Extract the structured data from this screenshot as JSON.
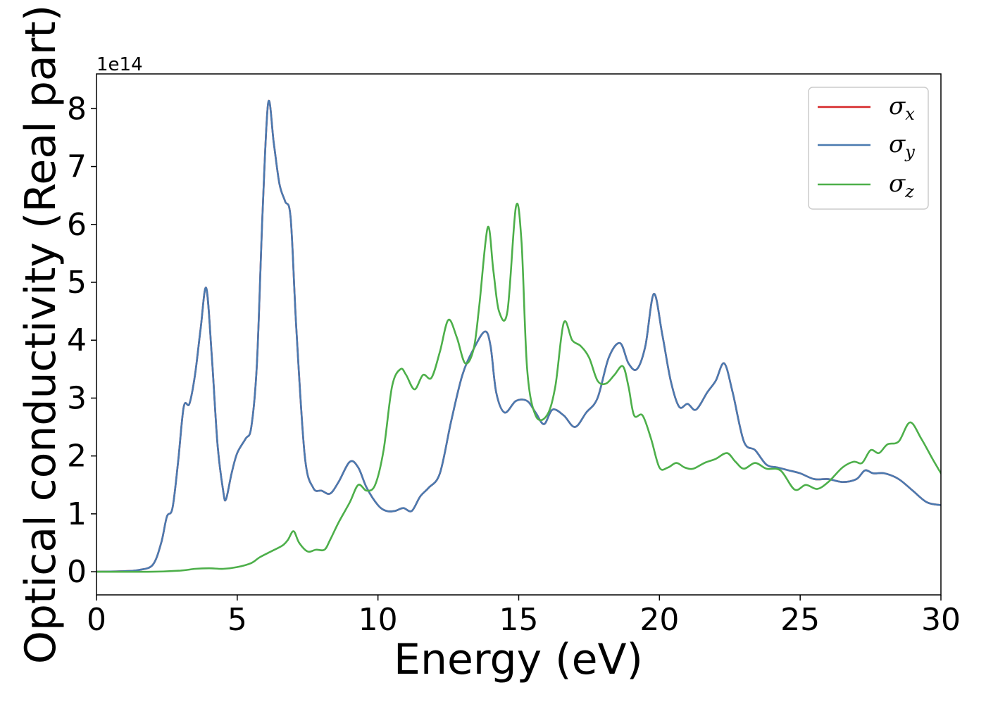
{
  "chart_data": {
    "type": "line",
    "title": "",
    "xlabel": "Energy (eV)",
    "ylabel": "Optical conductivity (Real part)",
    "y_offset_label": "1e14",
    "y_scale": 100000000000000.0,
    "xlim": [
      0,
      30
    ],
    "ylim": [
      -0.4,
      8.6
    ],
    "x_ticks": [
      0,
      5,
      10,
      15,
      20,
      25,
      30
    ],
    "x_tick_labels": [
      "0",
      "5",
      "10",
      "15",
      "20",
      "25",
      "30"
    ],
    "y_ticks": [
      0,
      1,
      2,
      3,
      4,
      5,
      6,
      7,
      8
    ],
    "y_tick_labels": [
      "0",
      "1",
      "2",
      "3",
      "4",
      "5",
      "6",
      "7",
      "8"
    ],
    "grid": false,
    "legend_position": "top-right",
    "series": [
      {
        "name": "σx",
        "legend_base": "σ",
        "legend_sub": "x",
        "color": "#d62728",
        "note_hidden_by": "σy",
        "points": [
          [
            0,
            0
          ],
          [
            1,
            0.01
          ],
          [
            1.5,
            0.03
          ],
          [
            2,
            0.12
          ],
          [
            2.3,
            0.5
          ],
          [
            2.5,
            0.95
          ],
          [
            2.7,
            1.1
          ],
          [
            2.9,
            1.9
          ],
          [
            3.1,
            2.85
          ],
          [
            3.3,
            2.9
          ],
          [
            3.5,
            3.4
          ],
          [
            3.7,
            4.2
          ],
          [
            3.9,
            4.9
          ],
          [
            4.1,
            3.7
          ],
          [
            4.3,
            2.2
          ],
          [
            4.5,
            1.4
          ],
          [
            4.6,
            1.25
          ],
          [
            4.8,
            1.7
          ],
          [
            5.0,
            2.05
          ],
          [
            5.3,
            2.3
          ],
          [
            5.5,
            2.5
          ],
          [
            5.7,
            3.6
          ],
          [
            5.9,
            6.2
          ],
          [
            6.1,
            8.1
          ],
          [
            6.3,
            7.4
          ],
          [
            6.5,
            6.7
          ],
          [
            6.7,
            6.4
          ],
          [
            6.9,
            6.1
          ],
          [
            7.1,
            4.2
          ],
          [
            7.4,
            2.0
          ],
          [
            7.7,
            1.45
          ],
          [
            8.0,
            1.4
          ],
          [
            8.3,
            1.35
          ],
          [
            8.6,
            1.55
          ],
          [
            9.0,
            1.9
          ],
          [
            9.3,
            1.8
          ],
          [
            9.6,
            1.45
          ],
          [
            10.0,
            1.15
          ],
          [
            10.3,
            1.05
          ],
          [
            10.6,
            1.05
          ],
          [
            10.9,
            1.1
          ],
          [
            11.2,
            1.05
          ],
          [
            11.5,
            1.3
          ],
          [
            11.8,
            1.45
          ],
          [
            12.2,
            1.7
          ],
          [
            12.6,
            2.6
          ],
          [
            13.0,
            3.4
          ],
          [
            13.4,
            3.85
          ],
          [
            13.8,
            4.15
          ],
          [
            14.0,
            3.9
          ],
          [
            14.2,
            3.1
          ],
          [
            14.5,
            2.75
          ],
          [
            14.9,
            2.95
          ],
          [
            15.3,
            2.95
          ],
          [
            15.6,
            2.75
          ],
          [
            15.9,
            2.55
          ],
          [
            16.2,
            2.8
          ],
          [
            16.6,
            2.7
          ],
          [
            17.0,
            2.5
          ],
          [
            17.4,
            2.75
          ],
          [
            17.8,
            3.0
          ],
          [
            18.2,
            3.7
          ],
          [
            18.6,
            3.95
          ],
          [
            18.9,
            3.6
          ],
          [
            19.2,
            3.5
          ],
          [
            19.5,
            3.9
          ],
          [
            19.8,
            4.8
          ],
          [
            20.1,
            4.1
          ],
          [
            20.4,
            3.3
          ],
          [
            20.7,
            2.85
          ],
          [
            21.0,
            2.9
          ],
          [
            21.3,
            2.8
          ],
          [
            21.7,
            3.1
          ],
          [
            22.0,
            3.3
          ],
          [
            22.3,
            3.6
          ],
          [
            22.6,
            3.1
          ],
          [
            23.0,
            2.25
          ],
          [
            23.4,
            2.1
          ],
          [
            23.8,
            1.85
          ],
          [
            24.2,
            1.8
          ],
          [
            24.6,
            1.75
          ],
          [
            25.0,
            1.7
          ],
          [
            25.5,
            1.6
          ],
          [
            26.0,
            1.6
          ],
          [
            26.5,
            1.55
          ],
          [
            27.0,
            1.6
          ],
          [
            27.3,
            1.75
          ],
          [
            27.6,
            1.7
          ],
          [
            28.0,
            1.7
          ],
          [
            28.5,
            1.6
          ],
          [
            29.0,
            1.4
          ],
          [
            29.5,
            1.2
          ],
          [
            30.0,
            1.15
          ]
        ]
      },
      {
        "name": "σy",
        "legend_base": "σ",
        "legend_sub": "y",
        "color": "#4a7ab0",
        "points": [
          [
            0,
            0
          ],
          [
            1,
            0.01
          ],
          [
            1.5,
            0.03
          ],
          [
            2,
            0.12
          ],
          [
            2.3,
            0.5
          ],
          [
            2.5,
            0.95
          ],
          [
            2.7,
            1.1
          ],
          [
            2.9,
            1.9
          ],
          [
            3.1,
            2.85
          ],
          [
            3.3,
            2.9
          ],
          [
            3.5,
            3.4
          ],
          [
            3.7,
            4.2
          ],
          [
            3.9,
            4.9
          ],
          [
            4.1,
            3.7
          ],
          [
            4.3,
            2.2
          ],
          [
            4.5,
            1.4
          ],
          [
            4.6,
            1.25
          ],
          [
            4.8,
            1.7
          ],
          [
            5.0,
            2.05
          ],
          [
            5.3,
            2.3
          ],
          [
            5.5,
            2.5
          ],
          [
            5.7,
            3.6
          ],
          [
            5.9,
            6.2
          ],
          [
            6.1,
            8.1
          ],
          [
            6.3,
            7.4
          ],
          [
            6.5,
            6.7
          ],
          [
            6.7,
            6.4
          ],
          [
            6.9,
            6.1
          ],
          [
            7.1,
            4.2
          ],
          [
            7.4,
            2.0
          ],
          [
            7.7,
            1.45
          ],
          [
            8.0,
            1.4
          ],
          [
            8.3,
            1.35
          ],
          [
            8.6,
            1.55
          ],
          [
            9.0,
            1.9
          ],
          [
            9.3,
            1.8
          ],
          [
            9.6,
            1.45
          ],
          [
            10.0,
            1.15
          ],
          [
            10.3,
            1.05
          ],
          [
            10.6,
            1.05
          ],
          [
            10.9,
            1.1
          ],
          [
            11.2,
            1.05
          ],
          [
            11.5,
            1.3
          ],
          [
            11.8,
            1.45
          ],
          [
            12.2,
            1.7
          ],
          [
            12.6,
            2.6
          ],
          [
            13.0,
            3.4
          ],
          [
            13.4,
            3.85
          ],
          [
            13.8,
            4.15
          ],
          [
            14.0,
            3.9
          ],
          [
            14.2,
            3.1
          ],
          [
            14.5,
            2.75
          ],
          [
            14.9,
            2.95
          ],
          [
            15.3,
            2.95
          ],
          [
            15.6,
            2.75
          ],
          [
            15.9,
            2.55
          ],
          [
            16.2,
            2.8
          ],
          [
            16.6,
            2.7
          ],
          [
            17.0,
            2.5
          ],
          [
            17.4,
            2.75
          ],
          [
            17.8,
            3.0
          ],
          [
            18.2,
            3.7
          ],
          [
            18.6,
            3.95
          ],
          [
            18.9,
            3.6
          ],
          [
            19.2,
            3.5
          ],
          [
            19.5,
            3.9
          ],
          [
            19.8,
            4.8
          ],
          [
            20.1,
            4.1
          ],
          [
            20.4,
            3.3
          ],
          [
            20.7,
            2.85
          ],
          [
            21.0,
            2.9
          ],
          [
            21.3,
            2.8
          ],
          [
            21.7,
            3.1
          ],
          [
            22.0,
            3.3
          ],
          [
            22.3,
            3.6
          ],
          [
            22.6,
            3.1
          ],
          [
            23.0,
            2.25
          ],
          [
            23.4,
            2.1
          ],
          [
            23.8,
            1.85
          ],
          [
            24.2,
            1.8
          ],
          [
            24.6,
            1.75
          ],
          [
            25.0,
            1.7
          ],
          [
            25.5,
            1.6
          ],
          [
            26.0,
            1.6
          ],
          [
            26.5,
            1.55
          ],
          [
            27.0,
            1.6
          ],
          [
            27.3,
            1.75
          ],
          [
            27.6,
            1.7
          ],
          [
            28.0,
            1.7
          ],
          [
            28.5,
            1.6
          ],
          [
            29.0,
            1.4
          ],
          [
            29.5,
            1.2
          ],
          [
            30.0,
            1.15
          ]
        ]
      },
      {
        "name": "σz",
        "legend_base": "σ",
        "legend_sub": "z",
        "color": "#4daf4a",
        "points": [
          [
            0,
            0
          ],
          [
            2,
            0.0
          ],
          [
            3,
            0.02
          ],
          [
            3.5,
            0.05
          ],
          [
            4,
            0.06
          ],
          [
            4.5,
            0.05
          ],
          [
            5,
            0.08
          ],
          [
            5.5,
            0.15
          ],
          [
            5.8,
            0.25
          ],
          [
            6.2,
            0.35
          ],
          [
            6.6,
            0.45
          ],
          [
            6.8,
            0.55
          ],
          [
            7.0,
            0.7
          ],
          [
            7.2,
            0.5
          ],
          [
            7.5,
            0.35
          ],
          [
            7.8,
            0.38
          ],
          [
            8.1,
            0.38
          ],
          [
            8.3,
            0.55
          ],
          [
            8.6,
            0.85
          ],
          [
            9.0,
            1.2
          ],
          [
            9.3,
            1.5
          ],
          [
            9.6,
            1.4
          ],
          [
            9.9,
            1.5
          ],
          [
            10.2,
            2.1
          ],
          [
            10.5,
            3.2
          ],
          [
            10.8,
            3.5
          ],
          [
            11.0,
            3.4
          ],
          [
            11.3,
            3.15
          ],
          [
            11.6,
            3.4
          ],
          [
            11.9,
            3.35
          ],
          [
            12.2,
            3.8
          ],
          [
            12.5,
            4.35
          ],
          [
            12.8,
            4.05
          ],
          [
            13.1,
            3.6
          ],
          [
            13.4,
            3.85
          ],
          [
            13.6,
            4.6
          ],
          [
            13.9,
            5.95
          ],
          [
            14.1,
            5.2
          ],
          [
            14.3,
            4.5
          ],
          [
            14.6,
            4.5
          ],
          [
            14.9,
            6.3
          ],
          [
            15.1,
            5.7
          ],
          [
            15.3,
            3.5
          ],
          [
            15.6,
            2.7
          ],
          [
            16.0,
            2.7
          ],
          [
            16.3,
            3.2
          ],
          [
            16.6,
            4.3
          ],
          [
            16.9,
            4.0
          ],
          [
            17.2,
            3.9
          ],
          [
            17.5,
            3.7
          ],
          [
            17.8,
            3.3
          ],
          [
            18.1,
            3.25
          ],
          [
            18.4,
            3.4
          ],
          [
            18.7,
            3.55
          ],
          [
            18.9,
            3.2
          ],
          [
            19.1,
            2.7
          ],
          [
            19.4,
            2.7
          ],
          [
            19.7,
            2.3
          ],
          [
            20.0,
            1.8
          ],
          [
            20.3,
            1.8
          ],
          [
            20.6,
            1.88
          ],
          [
            20.9,
            1.8
          ],
          [
            21.2,
            1.78
          ],
          [
            21.6,
            1.88
          ],
          [
            22.0,
            1.95
          ],
          [
            22.4,
            2.05
          ],
          [
            22.7,
            1.9
          ],
          [
            23.0,
            1.78
          ],
          [
            23.4,
            1.88
          ],
          [
            23.8,
            1.78
          ],
          [
            24.3,
            1.75
          ],
          [
            24.8,
            1.42
          ],
          [
            25.2,
            1.5
          ],
          [
            25.6,
            1.43
          ],
          [
            26.0,
            1.55
          ],
          [
            26.5,
            1.8
          ],
          [
            26.9,
            1.9
          ],
          [
            27.2,
            1.88
          ],
          [
            27.5,
            2.1
          ],
          [
            27.8,
            2.05
          ],
          [
            28.1,
            2.2
          ],
          [
            28.5,
            2.25
          ],
          [
            28.9,
            2.58
          ],
          [
            29.3,
            2.3
          ],
          [
            29.7,
            1.95
          ],
          [
            30.0,
            1.7
          ]
        ]
      }
    ]
  }
}
